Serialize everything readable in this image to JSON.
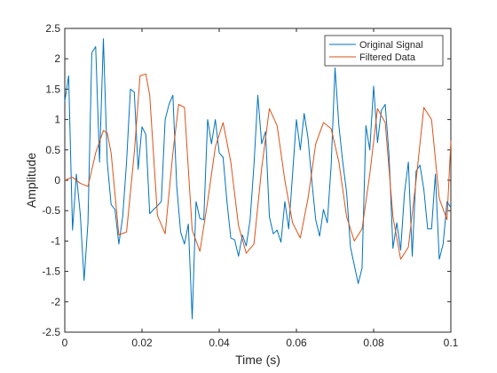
{
  "chart_data": {
    "type": "line",
    "title": "",
    "xlabel": "Time (s)",
    "ylabel": "Amplitude",
    "xlim": [
      0,
      0.1
    ],
    "ylim": [
      -2.5,
      2.5
    ],
    "xticks": [
      0,
      0.02,
      0.04,
      0.06,
      0.08,
      0.1
    ],
    "xtick_labels": [
      "0",
      "0.02",
      "0.04",
      "0.06",
      "0.08",
      "0.1"
    ],
    "yticks": [
      2.5,
      2,
      1.5,
      1,
      0.5,
      0,
      -0.5,
      -1,
      -1.5,
      -2,
      -2.5
    ],
    "ytick_labels": [
      "2.5",
      "2",
      "1.5",
      "1",
      "0.5",
      "0",
      "-0.5",
      "-1",
      "-1.5",
      "-2",
      "-2.5"
    ],
    "grid": false,
    "box": true,
    "legend_location": "top-right",
    "series": [
      {
        "name": "Original Signal",
        "color": "#0072BD",
        "x": [
          0,
          0.001,
          0.002,
          0.003,
          0.004,
          0.005,
          0.006,
          0.007,
          0.008,
          0.009,
          0.01,
          0.011,
          0.012,
          0.013,
          0.014,
          0.015,
          0.016,
          0.017,
          0.018,
          0.019,
          0.02,
          0.021,
          0.022,
          0.023,
          0.024,
          0.025,
          0.026,
          0.027,
          0.028,
          0.029,
          0.03,
          0.031,
          0.032,
          0.033,
          0.034,
          0.035,
          0.036,
          0.037,
          0.038,
          0.039,
          0.04,
          0.041,
          0.042,
          0.043,
          0.044,
          0.045,
          0.046,
          0.047,
          0.048,
          0.049,
          0.05,
          0.051,
          0.052,
          0.053,
          0.054,
          0.055,
          0.056,
          0.057,
          0.058,
          0.059,
          0.06,
          0.061,
          0.062,
          0.063,
          0.064,
          0.065,
          0.066,
          0.067,
          0.068,
          0.069,
          0.07,
          0.071,
          0.072,
          0.073,
          0.074,
          0.075,
          0.076,
          0.077,
          0.078,
          0.079,
          0.08,
          0.081,
          0.082,
          0.083,
          0.084,
          0.085,
          0.086,
          0.087,
          0.088,
          0.089,
          0.09,
          0.091,
          0.092,
          0.093,
          0.094,
          0.095,
          0.096,
          0.097,
          0.098,
          0.099,
          0.1
        ],
        "values": [
          1.3,
          1.72,
          -0.82,
          0.1,
          -0.55,
          -1.65,
          -0.7,
          2.1,
          2.2,
          0.3,
          2.33,
          0.3,
          -0.4,
          -0.48,
          -1.05,
          -0.6,
          0.3,
          1.5,
          1.45,
          0.18,
          0.88,
          0.75,
          -0.55,
          -0.48,
          -0.42,
          -0.35,
          1.0,
          1.25,
          1.4,
          -0.1,
          -0.85,
          -1.05,
          -0.72,
          -2.28,
          -0.35,
          -0.63,
          -0.65,
          1.0,
          0.6,
          1.0,
          0.45,
          0.38,
          -0.35,
          -0.95,
          -0.98,
          -1.25,
          -0.9,
          -1.08,
          -0.65,
          0.25,
          1.4,
          0.6,
          0.8,
          -0.6,
          -0.88,
          -0.82,
          -1.02,
          -0.35,
          -0.8,
          0.1,
          1.0,
          0.5,
          1.1,
          0.7,
          -0.02,
          -0.65,
          -0.92,
          -0.48,
          -0.7,
          0.25,
          1.85,
          0.9,
          0.3,
          -0.2,
          -1.1,
          -1.4,
          -1.7,
          -1.45,
          0.9,
          0.5,
          1.55,
          0.62,
          1.15,
          1.25,
          0.4,
          -1.12,
          -0.7,
          -1.15,
          -0.2,
          0.3,
          -1.25,
          0.15,
          0.25,
          -0.15,
          -0.8,
          -0.8,
          0.1,
          -1.3,
          -1.05,
          -0.35,
          -0.45
        ]
      },
      {
        "name": "Filtered Data",
        "color": "#D95319",
        "x": [
          0,
          0.002,
          0.004,
          0.006,
          0.008,
          0.01,
          0.011,
          0.012,
          0.014,
          0.016,
          0.018,
          0.0195,
          0.021,
          0.022,
          0.024,
          0.026,
          0.028,
          0.0295,
          0.031,
          0.033,
          0.035,
          0.037,
          0.039,
          0.041,
          0.043,
          0.045,
          0.047,
          0.049,
          0.051,
          0.053,
          0.055,
          0.057,
          0.059,
          0.061,
          0.063,
          0.065,
          0.067,
          0.069,
          0.071,
          0.073,
          0.075,
          0.077,
          0.079,
          0.081,
          0.083,
          0.085,
          0.087,
          0.089,
          0.091,
          0.093,
          0.095,
          0.097,
          0.099,
          0.1
        ],
        "values": [
          0,
          0.05,
          -0.05,
          -0.1,
          0.45,
          0.82,
          0.78,
          0.45,
          -0.9,
          -0.85,
          0.45,
          1.72,
          1.75,
          1.4,
          -0.58,
          -0.88,
          0.45,
          1.25,
          1.2,
          -0.82,
          -1.17,
          -0.35,
          0.55,
          0.95,
          0.3,
          -0.75,
          -1.2,
          -1.05,
          0.2,
          1.18,
          0.9,
          0.0,
          -0.7,
          -0.95,
          -0.3,
          0.6,
          0.95,
          0.85,
          0.3,
          -0.6,
          -1.0,
          -0.8,
          0.1,
          1.18,
          0.95,
          -0.6,
          -1.3,
          -1.1,
          0.0,
          1.2,
          1.0,
          -0.3,
          -0.65,
          0.65
        ]
      }
    ]
  }
}
